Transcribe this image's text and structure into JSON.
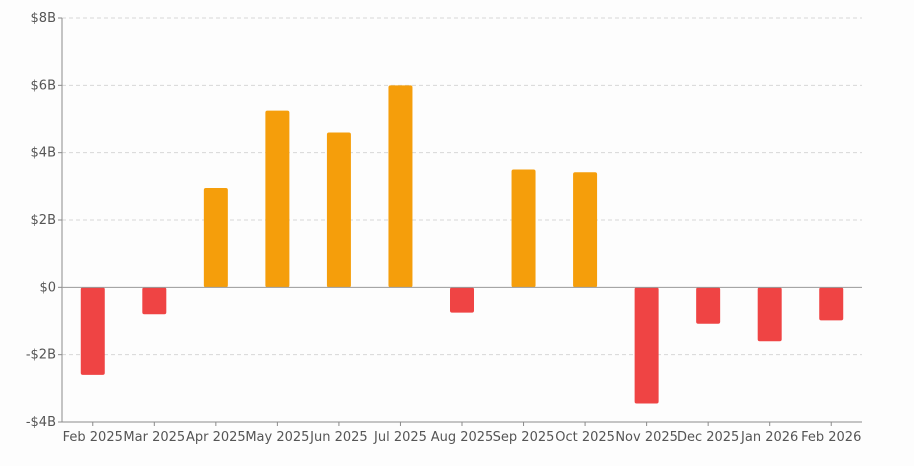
{
  "chart_data": {
    "type": "bar",
    "title": "",
    "xlabel": "",
    "ylabel": "",
    "categories": [
      "Feb 2025",
      "Mar 2025",
      "Apr 2025",
      "May 2025",
      "Jun 2025",
      "Jul 2025",
      "Aug 2025",
      "Sep 2025",
      "Oct 2025",
      "Nov 2025",
      "Dec 2025",
      "Jan 2026",
      "Feb 2026"
    ],
    "values": [
      -2.6,
      -0.8,
      2.95,
      5.25,
      4.6,
      6.0,
      -0.75,
      3.5,
      3.42,
      -3.45,
      -1.08,
      -1.6,
      -0.98
    ],
    "unit": "billions USD",
    "ylim": [
      -4,
      8
    ],
    "yticks": [
      -4,
      -2,
      0,
      2,
      4,
      6,
      8
    ],
    "ytick_labels": [
      "-$4B",
      "-$2B",
      "$0",
      "$2B",
      "$4B",
      "$6B",
      "$8B"
    ],
    "grid": true,
    "legend": "none",
    "colors": {
      "positive": "#f59e0b",
      "negative": "#ef4444"
    }
  }
}
